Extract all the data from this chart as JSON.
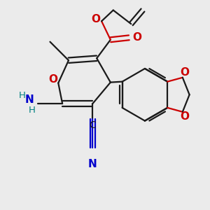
{
  "background_color": "#ebebeb",
  "bond_color": "#1a1a1a",
  "oxygen_color": "#cc0000",
  "nitrogen_color": "#0000cc",
  "carbon_color": "#1a1a1a",
  "teal_color": "#008080",
  "figsize": [
    3.0,
    3.0
  ],
  "dpi": 100,
  "xlim": [
    0,
    3.0
  ],
  "ylim": [
    0,
    3.0
  ]
}
